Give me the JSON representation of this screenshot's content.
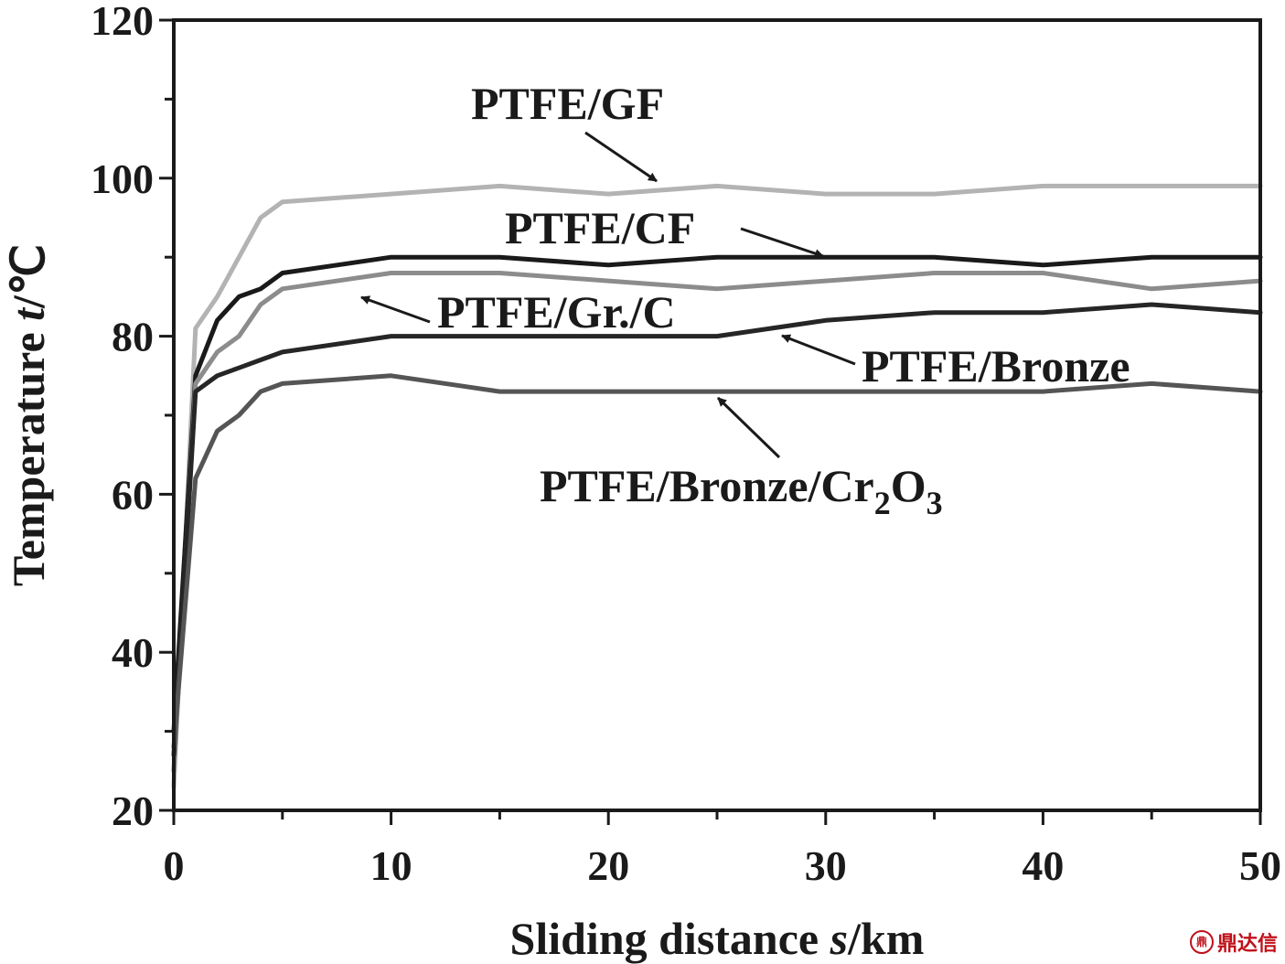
{
  "chart_data": {
    "type": "line",
    "xlabel": {
      "prefix": "Sliding distance ",
      "var": "s",
      "suffix": "/km"
    },
    "ylabel": {
      "prefix": "Temperature ",
      "var": "t",
      "suffix": "/℃"
    },
    "xlim": [
      0,
      50
    ],
    "ylim": [
      20,
      120
    ],
    "x_ticks": [
      0,
      10,
      20,
      30,
      40,
      50
    ],
    "y_ticks": [
      20,
      40,
      60,
      80,
      100,
      120
    ],
    "grid": false,
    "series": [
      {
        "name": "PTFE/GF",
        "color": "#b3b3b3",
        "x": [
          0,
          1,
          2,
          3,
          4,
          5,
          10,
          15,
          20,
          25,
          30,
          35,
          40,
          45,
          50
        ],
        "y": [
          23,
          81,
          85,
          90,
          95,
          97,
          98,
          99,
          98,
          99,
          98,
          98,
          99,
          99,
          99
        ]
      },
      {
        "name": "PTFE/CF",
        "color": "#1a1a1a",
        "x": [
          0,
          1,
          2,
          3,
          4,
          5,
          10,
          15,
          20,
          25,
          30,
          35,
          40,
          45,
          50
        ],
        "y": [
          30,
          75,
          82,
          85,
          86,
          88,
          90,
          90,
          89,
          90,
          90,
          90,
          89,
          90,
          90
        ]
      },
      {
        "name": "PTFE/Gr./C",
        "color": "#8c8c8c",
        "x": [
          0,
          1,
          2,
          3,
          4,
          5,
          10,
          15,
          20,
          25,
          30,
          35,
          40,
          45,
          50
        ],
        "y": [
          25,
          74,
          78,
          80,
          84,
          86,
          88,
          88,
          87,
          86,
          87,
          88,
          88,
          86,
          87
        ]
      },
      {
        "name": "PTFE/Bronze",
        "color": "#262626",
        "x": [
          0,
          1,
          2,
          3,
          4,
          5,
          10,
          15,
          20,
          25,
          30,
          35,
          40,
          45,
          50
        ],
        "y": [
          27,
          73,
          75,
          76,
          77,
          78,
          80,
          80,
          80,
          80,
          82,
          83,
          83,
          84,
          83
        ]
      },
      {
        "name": "PTFE/Bronze/Cr2O3",
        "color": "#555555",
        "x": [
          0,
          1,
          2,
          3,
          4,
          5,
          10,
          15,
          20,
          25,
          30,
          35,
          40,
          45,
          50
        ],
        "y": [
          28,
          62,
          68,
          70,
          73,
          74,
          75,
          73,
          73,
          73,
          73,
          73,
          73,
          74,
          73
        ]
      }
    ],
    "annotations": [
      {
        "text": "PTFE/GF",
        "series": "PTFE/GF"
      },
      {
        "text": "PTFE/CF",
        "series": "PTFE/CF"
      },
      {
        "text": "PTFE/Gr./C",
        "series": "PTFE/Gr./C"
      },
      {
        "text": "PTFE/Bronze",
        "series": "PTFE/Bronze"
      },
      {
        "text_main": "PTFE/Bronze/Cr",
        "sub1": "2",
        "mid": "O",
        "sub2": "3",
        "series": "PTFE/Bronze/Cr2O3"
      }
    ]
  },
  "watermark": {
    "logo": "鼎",
    "text": "鼎达信"
  }
}
